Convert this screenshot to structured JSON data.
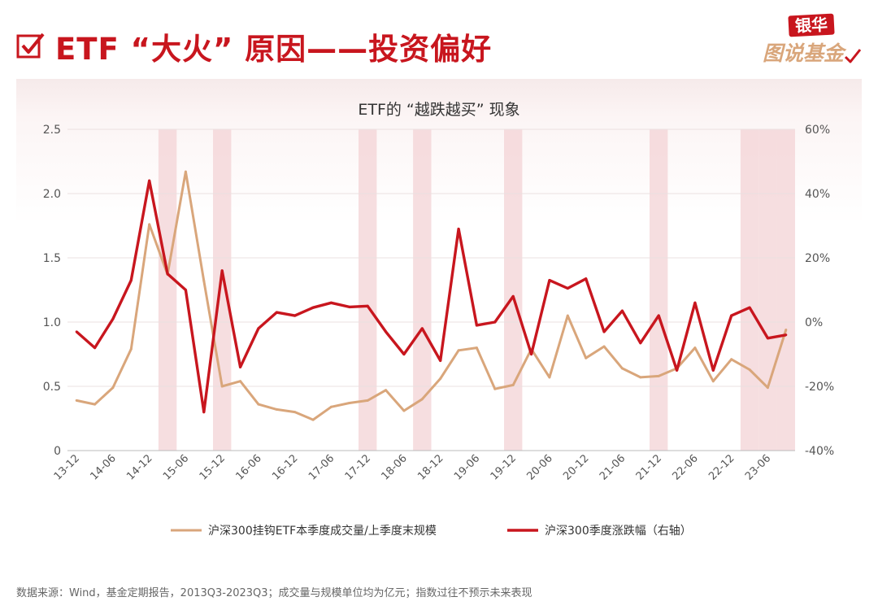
{
  "header": {
    "title": "ETF “大火” 原因——投资偏好",
    "accent_color": "#c8161e",
    "icon": "checkbox-check-icon"
  },
  "logo": {
    "top_text": "银华",
    "bottom_text": "图说基金"
  },
  "footer": {
    "source": "数据来源：Wind，基金定期报告，2013Q3-2023Q3；成交量与规模单位均为亿元；指数过往不预示未来表现"
  },
  "chart_data": {
    "type": "line",
    "title": "ETF的 “越跌越买” 现象",
    "categories": [
      "13-12",
      "14-03",
      "14-06",
      "14-09",
      "14-12",
      "15-03",
      "15-06",
      "15-09",
      "15-12",
      "16-03",
      "16-06",
      "16-09",
      "16-12",
      "17-03",
      "17-06",
      "17-09",
      "17-12",
      "18-03",
      "18-06",
      "18-09",
      "18-12",
      "19-03",
      "19-06",
      "19-09",
      "19-12",
      "20-03",
      "20-06",
      "20-09",
      "20-12",
      "21-03",
      "21-06",
      "21-09",
      "21-12",
      "22-03",
      "22-06",
      "22-09",
      "22-12",
      "23-03",
      "23-06",
      "23-09"
    ],
    "tick_labels": [
      "13-12",
      "14-06",
      "14-12",
      "15-06",
      "15-12",
      "16-06",
      "16-12",
      "17-06",
      "17-12",
      "18-06",
      "18-12",
      "19-06",
      "19-12",
      "20-06",
      "20-12",
      "21-06",
      "21-12",
      "22-06",
      "22-12",
      "23-06"
    ],
    "series": [
      {
        "name": "沪深300挂钩ETF本季度成交量/上季度末规模",
        "axis": "left",
        "color": "#d9a67b",
        "values": [
          0.39,
          0.36,
          0.49,
          0.79,
          1.76,
          1.37,
          2.17,
          1.32,
          0.5,
          0.54,
          0.36,
          0.32,
          0.3,
          0.24,
          0.34,
          0.37,
          0.39,
          0.47,
          0.31,
          0.4,
          0.56,
          0.78,
          0.8,
          0.48,
          0.51,
          0.79,
          0.57,
          1.05,
          0.72,
          0.81,
          0.64,
          0.57,
          0.58,
          0.64,
          0.8,
          0.54,
          0.71,
          0.63,
          0.49,
          0.94
        ]
      },
      {
        "name": "沪深300季度涨跌幅（右轴）",
        "axis": "right",
        "color": "#c8161e",
        "values": [
          -3,
          -8,
          1,
          13,
          44,
          15,
          10,
          -28,
          16,
          -14,
          -2,
          3,
          2,
          4.5,
          6,
          4.7,
          5,
          -3,
          -10,
          -2,
          -12,
          29,
          -1,
          0,
          8,
          -10,
          13,
          10.5,
          13.5,
          -3,
          3.5,
          -6.5,
          2,
          -15,
          6,
          -15,
          2,
          4.5,
          -5,
          -4
        ]
      }
    ],
    "y_left": {
      "min": 0,
      "max": 2.5,
      "ticks": [
        "0",
        "0.5",
        "1.0",
        "1.5",
        "2.0",
        "2.5"
      ]
    },
    "y_right": {
      "min": -40,
      "max": 60,
      "ticks": [
        "-40%",
        "-20%",
        "0%",
        "20%",
        "40%",
        "60%"
      ]
    },
    "shaded_categories": [
      "15-03",
      "15-12",
      "17-12",
      "18-09",
      "19-12",
      "21-12",
      "23-03",
      "23-06",
      "23-09"
    ],
    "shade_color": "#f3d3d5",
    "grid": true,
    "legend_position": "bottom"
  }
}
